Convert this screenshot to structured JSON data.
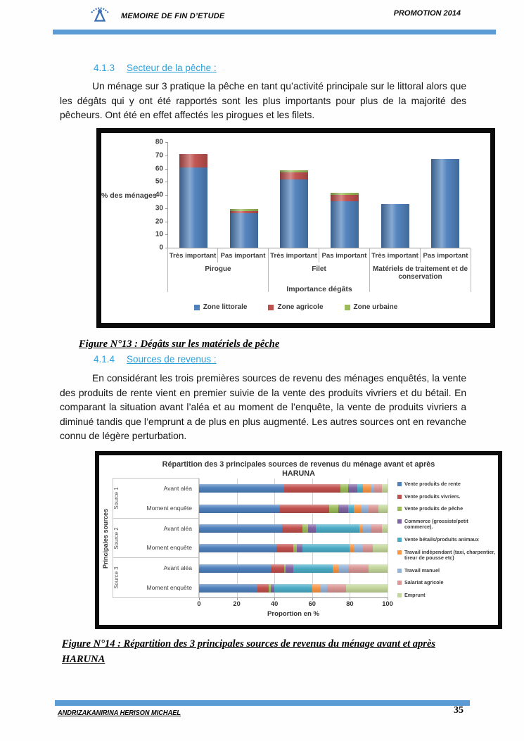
{
  "header": {
    "title": "MEMOIRE DE FIN D’ETUDE",
    "promotion": "PROMOTION 2014",
    "logo": "school-emblem-icon",
    "rule_color": "#5b9bd5"
  },
  "footer": {
    "author": "ANDRIZAKANIRINA HERISON MICHAEL",
    "page_number": "35"
  },
  "sections": {
    "s1": {
      "number": "4.1.3",
      "title": "Secteur de la pêche :"
    },
    "s2": {
      "number": "4.1.4",
      "title": "Sources de revenus :"
    }
  },
  "paragraphs": {
    "p1": "Un ménage sur 3 pratique la pêche en tant qu’activité principale sur le littoral alors que les dégâts qui y ont été rapportés sont les plus importants pour plus de la majorité des pêcheurs. Ont été en effet affectés les pirogues et les filets.",
    "p2": "En considérant les trois premières sources de revenu des ménages enquêtés, la vente des produits de rente vient en premier suivie de la vente des produits vivriers et du bétail. En comparant la situation avant l’aléa et au moment de l’enquête, la vente de produits vivriers a diminué tandis que l’emprunt a de plus en plus augmenté.  Les autres sources ont en revanche connu de légère perturbation."
  },
  "figures": {
    "f13": "Figure N°13 : Dégâts sur les matériels de pêche",
    "f14": "Figure N°14 : Répartition des 3 principales sources de revenus du ménage avant et après HARUNA"
  },
  "chart_data": [
    {
      "type": "bar",
      "stacked": true,
      "ylabel": "% des ménages",
      "xlabel": "Importance dégâts",
      "ylim": [
        0,
        80
      ],
      "yticks": [
        0,
        10,
        20,
        30,
        40,
        50,
        60,
        70,
        80
      ],
      "grid": false,
      "legend_position": "bottom",
      "groups": [
        "Pirogue",
        "Filet",
        "Matériels de traitement et de conservation"
      ],
      "categories": [
        "Très important",
        "Pas important",
        "Très important",
        "Pas important",
        "Très important",
        "Pas important"
      ],
      "series": [
        {
          "name": "Zone littorale",
          "color": "#4F81BD",
          "values": [
            61,
            26,
            52,
            35,
            33,
            67
          ]
        },
        {
          "name": "Zone agricole",
          "color": "#C0504D",
          "values": [
            10,
            2,
            5,
            5,
            0,
            0
          ]
        },
        {
          "name": "Zone urbaine",
          "color": "#9BBB59",
          "values": [
            0,
            1.5,
            1.5,
            1.5,
            0,
            0
          ]
        }
      ]
    },
    {
      "type": "bar",
      "orientation": "horizontal",
      "stacked_percent": true,
      "title_line1": "Répartition des 3 principales sources de revenus du ménage avant et après",
      "title_line2": "HARUNA",
      "xlabel": "Proportion en %",
      "ylabel": "Principales sources",
      "xticks": [
        0,
        20,
        40,
        60,
        80,
        100
      ],
      "xlim": [
        0,
        100
      ],
      "legend_position": "right",
      "row_groups": [
        "Source 1",
        "Source 2",
        "Source 3"
      ],
      "rows": [
        "Avant aléa",
        "Moment enquête",
        "Avant aléa",
        "Moment enquête",
        "Avant aléa",
        "Moment enquête"
      ],
      "series": [
        {
          "name": "Vente produits de rente",
          "color": "#4F81BD",
          "values": [
            45,
            43,
            44,
            41,
            38,
            31
          ]
        },
        {
          "name": "Vente  produits vivriers.",
          "color": "#C0504D",
          "values": [
            30,
            26,
            11,
            9,
            7,
            6
          ]
        },
        {
          "name": "Vente produits de pêche",
          "color": "#9BBB59",
          "values": [
            4,
            5,
            3,
            2,
            1,
            1
          ]
        },
        {
          "name": "Commerce (grossiste/petit commerce).",
          "color": "#8064A2",
          "values": [
            5,
            5,
            4,
            3,
            4,
            2
          ]
        },
        {
          "name": "Vente bétails/produits animaux",
          "color": "#4BACC6",
          "values": [
            3,
            3,
            23,
            25,
            21,
            20
          ]
        },
        {
          "name": "Travail indépendant (taxi, charpentier, tireur de pousse etc)",
          "color": "#F79646",
          "values": [
            4,
            4,
            2,
            2,
            3,
            4
          ]
        },
        {
          "name": "Travail manuel",
          "color": "#95B3D7",
          "values": [
            2,
            4,
            4,
            5,
            5,
            4
          ]
        },
        {
          "name": "Salariat agricole",
          "color": "#D99694",
          "values": [
            4,
            5,
            6,
            5,
            11,
            10
          ]
        },
        {
          "name": "Emprunt",
          "color": "#C3D69B",
          "values": [
            3,
            5,
            3,
            8,
            10,
            22
          ]
        }
      ]
    }
  ]
}
